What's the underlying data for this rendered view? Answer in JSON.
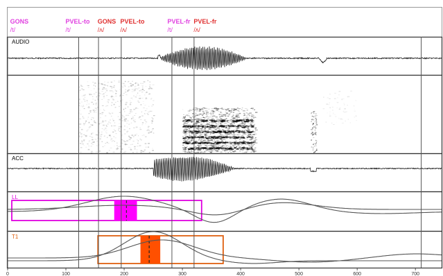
{
  "colors": {
    "gons": "#e040e0",
    "pvel_to": "#e040e0",
    "gons_red": "#e03030",
    "pvel_to_red": "#e03030",
    "ll_box": "#e000e0",
    "ll_fill": "#ff00ff",
    "t1_box": "#e06010",
    "t1_fill": "#ff5000",
    "trace": "#333333",
    "cursor": "#555555"
  },
  "top_labels": [
    {
      "name": "GONS",
      "phone": "/t/",
      "x_ms": 2,
      "color": "#e040e0"
    },
    {
      "name": "PVEL-to",
      "phone": "/t/",
      "x_ms": 97,
      "color": "#e040e0"
    },
    {
      "name": "GONS",
      "phone": "/ʌ/",
      "x_ms": 152,
      "color": "#e03030"
    },
    {
      "name": "PVEL-to",
      "phone": "/ʌ/",
      "x_ms": 191,
      "color": "#e03030"
    },
    {
      "name": "PVEL-fr",
      "phone": "/t/",
      "x_ms": 272,
      "color": "#e040e0"
    },
    {
      "name": "PVEL-fr",
      "phone": "/ʌ/",
      "x_ms": 317,
      "color": "#e03030"
    }
  ],
  "cursors_ms": [
    0,
    122,
    156,
    195,
    282,
    320,
    710
  ],
  "panels": {
    "audio": {
      "title": "AUDIO"
    },
    "spectrogram": {
      "title": ""
    },
    "acc": {
      "title": "ACC"
    },
    "ll": {
      "title": "LL",
      "box_ms": [
        0,
        333
      ],
      "fill_ms": [
        183,
        222
      ],
      "mark_ms": 204
    },
    "t1": {
      "title": "T1",
      "box_ms": [
        155,
        370
      ],
      "fill_ms": [
        228,
        262
      ],
      "mark_ms": 243
    }
  },
  "x_axis": {
    "min_ms": 0,
    "max_ms": 745,
    "ticks": [
      "0",
      "100",
      "200",
      "300",
      "400",
      "500",
      "600",
      "700"
    ]
  }
}
